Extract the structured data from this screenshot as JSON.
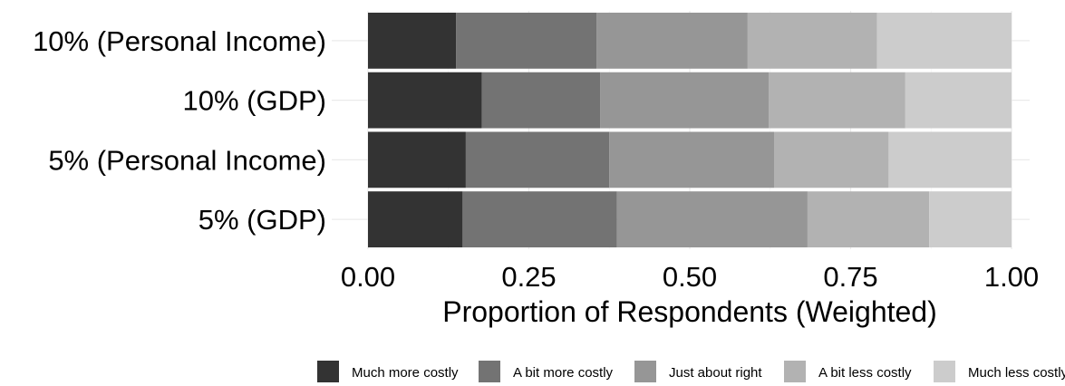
{
  "chart_data": {
    "type": "bar",
    "orientation": "horizontal",
    "stacked": true,
    "title": "",
    "xlabel": "Proportion of Respondents (Weighted)",
    "ylabel": "",
    "xlim": [
      0,
      1
    ],
    "x_ticks": [
      "0.00",
      "0.25",
      "0.50",
      "0.75",
      "1.00"
    ],
    "grid": true,
    "legend_position": "bottom",
    "categories": [
      "10% (Personal Income)",
      "10% (GDP)",
      "5% (Personal Income)",
      "5% (GDP)"
    ],
    "series": [
      {
        "name": "Much more costly",
        "color": "#333333",
        "values": [
          0.137,
          0.177,
          0.152,
          0.147
        ]
      },
      {
        "name": "A bit more costly",
        "color": "#737373",
        "values": [
          0.218,
          0.184,
          0.223,
          0.24
        ]
      },
      {
        "name": "Just about right",
        "color": "#969696",
        "values": [
          0.235,
          0.262,
          0.256,
          0.296
        ]
      },
      {
        "name": "A bit less costly",
        "color": "#b2b2b2",
        "values": [
          0.201,
          0.212,
          0.178,
          0.189
        ]
      },
      {
        "name": "Much less costly",
        "color": "#cccccc",
        "values": [
          0.209,
          0.165,
          0.191,
          0.128
        ]
      }
    ]
  }
}
